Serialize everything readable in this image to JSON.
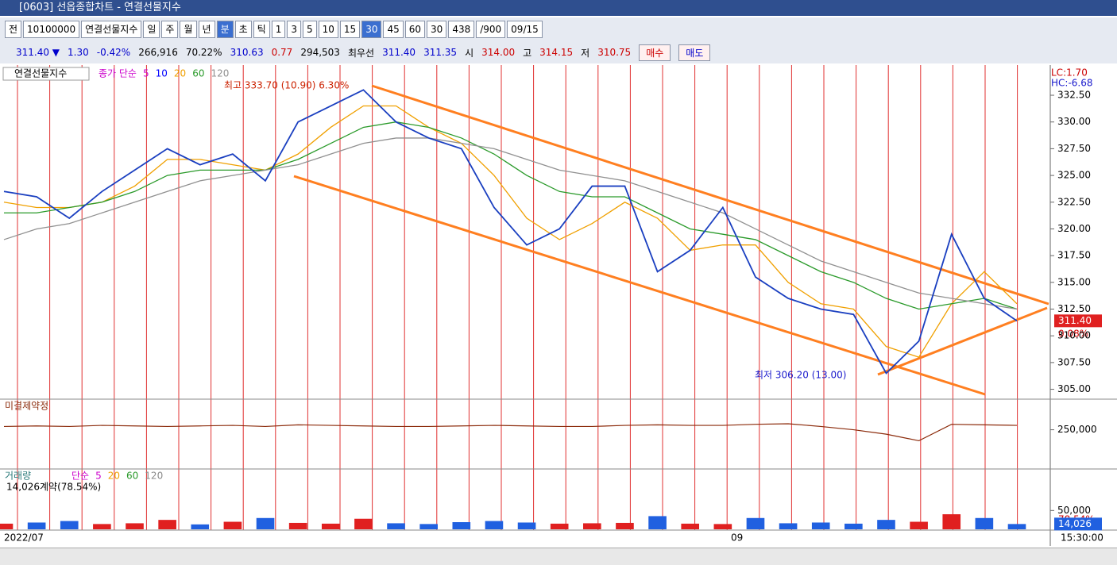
{
  "window": {
    "title": "[0603] 선옵종합차트 - 연결선물지수"
  },
  "toolbar": [
    {
      "text": "전"
    },
    {
      "text": "10100000"
    },
    {
      "text": "연결선물지수"
    },
    {
      "text": "일"
    },
    {
      "text": "주"
    },
    {
      "text": "월"
    },
    {
      "text": "년"
    },
    {
      "text": "분",
      "selected": true
    },
    {
      "text": "초"
    },
    {
      "text": "틱"
    },
    {
      "text": "1"
    },
    {
      "text": "3"
    },
    {
      "text": "5"
    },
    {
      "text": "10"
    },
    {
      "text": "15"
    },
    {
      "text": "30",
      "selected": true
    },
    {
      "text": "45"
    },
    {
      "text": "60"
    },
    {
      "text": "30"
    },
    {
      "text": "438"
    },
    {
      "text": "/900"
    },
    {
      "text": "09/15"
    }
  ],
  "quote": [
    {
      "text": "311.40 ▼",
      "color": "#0000cc"
    },
    {
      "text": "1.30",
      "color": "#0000cc"
    },
    {
      "text": "-0.42%",
      "color": "#0000cc"
    },
    {
      "text": "266,916",
      "color": "#000000"
    },
    {
      "text": "70.22%",
      "color": "#000000"
    },
    {
      "text": "310.63",
      "color": "#0000cc"
    },
    {
      "text": "0.77",
      "color": "#cc0000"
    },
    {
      "text": "294,503",
      "color": "#000000"
    },
    {
      "text": "최우선",
      "color": "#000000"
    },
    {
      "text": "311.40",
      "color": "#0000cc"
    },
    {
      "text": "311.35",
      "color": "#0000cc"
    },
    {
      "text": "시",
      "color": "#000000"
    },
    {
      "text": "314.00",
      "color": "#cc0000"
    },
    {
      "text": "고",
      "color": "#000000"
    },
    {
      "text": "314.15",
      "color": "#cc0000"
    },
    {
      "text": "저",
      "color": "#000000"
    },
    {
      "text": "310.75",
      "color": "#cc0000"
    }
  ],
  "order_buttons": [
    "매수",
    "매도"
  ],
  "chart_data": [
    {
      "type": "line",
      "title": "연결선물지수",
      "color": "#1a3fc0",
      "legend": [
        {
          "text": "종가 단순",
          "color": "#cc00cc"
        },
        {
          "text": "5",
          "color": "#cc00cc"
        },
        {
          "text": "10",
          "color": "#0000ff"
        }
      ],
      "values": [
        323.5,
        323,
        321,
        323.5,
        325.5,
        327.5,
        326,
        327,
        324.5,
        330,
        331.5,
        333,
        330,
        328.5,
        327.5,
        322,
        318.5,
        320,
        324,
        324,
        316,
        318,
        322,
        315.5,
        313.5,
        312.5,
        312,
        306.5,
        309.5,
        319.5,
        313.5,
        311.4
      ],
      "series": [
        {
          "name": "20",
          "color": "#f0a000",
          "values": [
            322.5,
            322,
            322,
            322.5,
            324,
            326.5,
            326.5,
            326,
            325.5,
            327,
            329.5,
            331.5,
            331.5,
            329.5,
            328,
            325,
            321,
            319,
            320.5,
            322.5,
            321,
            318,
            318.5,
            318.5,
            315,
            313,
            312.5,
            309,
            308,
            313,
            316,
            313
          ]
        },
        {
          "name": "60",
          "color": "#2a9a2a",
          "values": [
            321.5,
            321.5,
            322,
            322.5,
            323.5,
            325,
            325.5,
            325.5,
            325.5,
            326.5,
            328,
            329.5,
            330,
            329.5,
            328.5,
            327,
            325,
            323.5,
            323,
            323,
            321.5,
            320,
            319.5,
            319,
            317.5,
            316,
            315,
            313.5,
            312.5,
            313,
            313.5,
            312.5
          ]
        },
        {
          "name": "120",
          "color": "#909090",
          "values": [
            319,
            320,
            320.5,
            321.5,
            322.5,
            323.5,
            324.5,
            325,
            325.5,
            326,
            327,
            328,
            328.5,
            328.5,
            328,
            327.5,
            326.5,
            325.5,
            325,
            324.5,
            323.5,
            322.5,
            321.5,
            320,
            318.5,
            317,
            316,
            315,
            314,
            313.5,
            313,
            312.5
          ]
        }
      ],
      "ylim": [
        304.3,
        335.1
      ],
      "yticks": [
        {
          "value": 332.5,
          "label": "332.50"
        },
        {
          "value": 330,
          "label": "330.00"
        },
        {
          "value": 327.5,
          "label": "327.50"
        },
        {
          "value": 325,
          "label": "325.00"
        },
        {
          "value": 322.5,
          "label": "322.50"
        },
        {
          "value": 320,
          "label": "320.00"
        },
        {
          "value": 317.5,
          "label": "317.50"
        },
        {
          "value": 315,
          "label": "315.00"
        },
        {
          "value": 312.5,
          "label": "312.50"
        },
        {
          "value": 310,
          "label": "310.00"
        },
        {
          "value": 307.5,
          "label": "307.50"
        },
        {
          "value": 305,
          "label": "305.00"
        }
      ],
      "last_label": {
        "value": 311.4,
        "label": "311.40"
      },
      "annotations": [
        "최고 333.70 (10.90) 6.30%",
        "최저 306.20 (13.00)",
        "LC:1.70",
        "HC:-6.68",
        "0.08%"
      ]
    },
    {
      "type": "line",
      "title": "미결제약정",
      "color": "#8b2a0a",
      "values": [
        253000,
        253500,
        253000,
        254000,
        253500,
        253000,
        253500,
        254000,
        253000,
        254500,
        254000,
        253500,
        253000,
        253000,
        253500,
        254000,
        253500,
        253000,
        253000,
        254000,
        254500,
        254000,
        254000,
        255000,
        255500,
        253000,
        250000,
        246000,
        240000,
        255000,
        254500,
        254000
      ],
      "ylim": [
        215000,
        275000
      ],
      "yticks": [
        {
          "value": 250000,
          "label": "250,000"
        }
      ]
    },
    {
      "type": "bar",
      "title": "거래량",
      "up_color": "#e02020",
      "down_color": "#2060e0",
      "legend": [
        {
          "text": "단순",
          "color": "#cc00cc"
        },
        {
          "text": "5",
          "color": "#cc00cc"
        },
        {
          "text": "20",
          "color": "#f0a000"
        },
        {
          "text": "60",
          "color": "#2a9a2a"
        },
        {
          "text": "120",
          "color": "#888888"
        }
      ],
      "subtitle": "14,026계약(78.54%)",
      "values": [
        15000,
        18000,
        22000,
        14000,
        16000,
        25000,
        13000,
        20000,
        30000,
        17000,
        15000,
        28000,
        16000,
        14000,
        19000,
        22000,
        18000,
        15000,
        16000,
        17000,
        35000,
        15000,
        14000,
        30000,
        16000,
        18000,
        15000,
        25000,
        20000,
        40000,
        30000,
        14026
      ],
      "ylim": [
        0,
        95000
      ],
      "yticks": [
        {
          "value": 50000,
          "label": "50,000"
        }
      ],
      "last_label": {
        "value": 14026,
        "label": "14,026"
      },
      "annotations": [
        "78.54%"
      ]
    }
  ],
  "time_axis": [
    "2022/07",
    "09",
    "15:30:00"
  ]
}
